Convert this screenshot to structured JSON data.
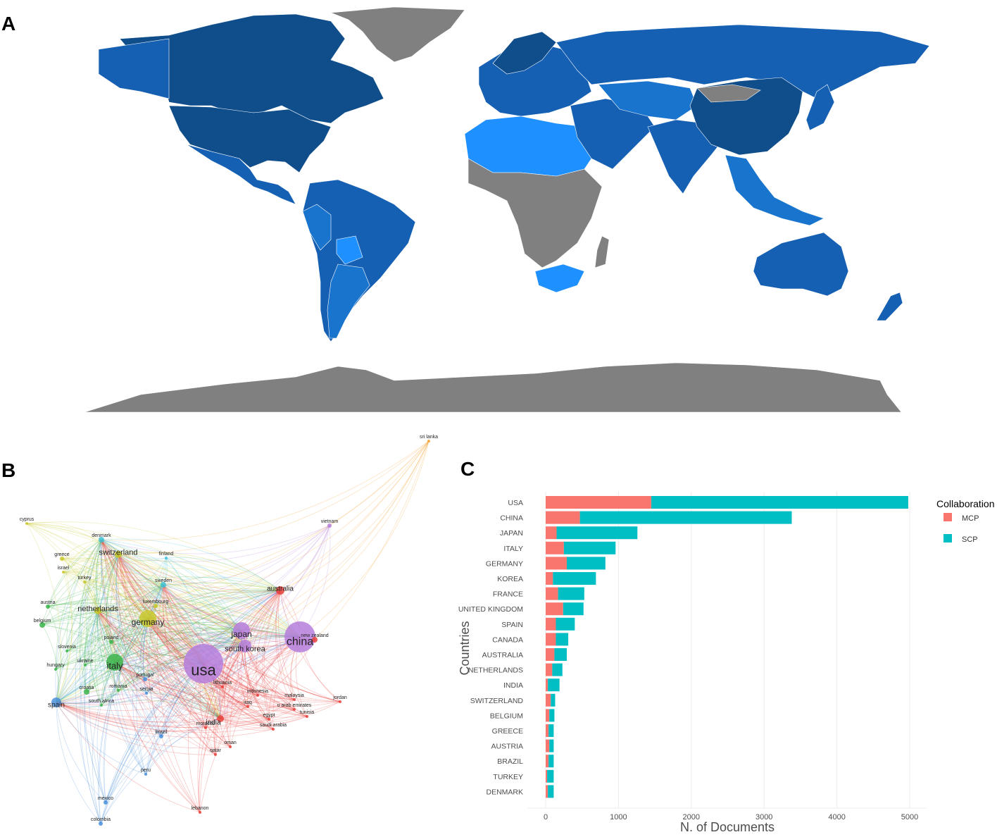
{
  "panels": {
    "a": "A",
    "b": "B",
    "c": "C"
  },
  "map": {
    "colors": {
      "no_data": "#808080",
      "level1": "#1E90FF",
      "level2": "#1874CD",
      "level3": "#1660B4",
      "level4": "#104E8B"
    }
  },
  "network": {
    "clusters": {
      "red": "#E8413C",
      "green": "#3CB44B",
      "blue": "#4A8FDB",
      "yellow": "#C8C82A",
      "purple": "#B57EDC",
      "cyan": "#3EC1D3",
      "orange": "#F5A030"
    },
    "nodes": [
      {
        "label": "usa",
        "cluster": "purple",
        "size": "xl"
      },
      {
        "label": "china",
        "cluster": "purple",
        "size": "l"
      },
      {
        "label": "japan",
        "cluster": "purple",
        "size": "m"
      },
      {
        "label": "south korea",
        "cluster": "purple",
        "size": "m"
      },
      {
        "label": "vietnam",
        "cluster": "purple",
        "size": "xs"
      },
      {
        "label": "italy",
        "cluster": "green",
        "size": "m"
      },
      {
        "label": "germany",
        "cluster": "yellow",
        "size": "m"
      },
      {
        "label": "netherlands",
        "cluster": "yellow",
        "size": "s"
      },
      {
        "label": "switzerland",
        "cluster": "yellow",
        "size": "s"
      },
      {
        "label": "australia",
        "cluster": "red",
        "size": "s"
      },
      {
        "label": "new zealand",
        "cluster": "red",
        "size": "xs"
      },
      {
        "label": "india",
        "cluster": "red",
        "size": "s"
      },
      {
        "label": "spain",
        "cluster": "blue",
        "size": "s"
      },
      {
        "label": "brazil",
        "cluster": "blue",
        "size": "xs"
      },
      {
        "label": "mexico",
        "cluster": "blue",
        "size": "xs"
      },
      {
        "label": "colombia",
        "cluster": "blue",
        "size": "xs"
      },
      {
        "label": "peru",
        "cluster": "blue",
        "size": "xs"
      },
      {
        "label": "austria",
        "cluster": "green",
        "size": "xs"
      },
      {
        "label": "belgium",
        "cluster": "green",
        "size": "xs"
      },
      {
        "label": "poland",
        "cluster": "green",
        "size": "xs"
      },
      {
        "label": "hungary",
        "cluster": "green",
        "size": "xs"
      },
      {
        "label": "slovenia",
        "cluster": "green",
        "size": "xs"
      },
      {
        "label": "ukraine",
        "cluster": "green",
        "size": "xs"
      },
      {
        "label": "croatia",
        "cluster": "green",
        "size": "xs"
      },
      {
        "label": "romania",
        "cluster": "green",
        "size": "xs"
      },
      {
        "label": "south africa",
        "cluster": "green",
        "size": "xs"
      },
      {
        "label": "portugal",
        "cluster": "blue",
        "size": "xs"
      },
      {
        "label": "serbia",
        "cluster": "blue",
        "size": "xs"
      },
      {
        "label": "denmark",
        "cluster": "cyan",
        "size": "xs"
      },
      {
        "label": "finland",
        "cluster": "cyan",
        "size": "xs"
      },
      {
        "label": "sweden",
        "cluster": "cyan",
        "size": "xs"
      },
      {
        "label": "luxembourg",
        "cluster": "yellow",
        "size": "xs"
      },
      {
        "label": "greece",
        "cluster": "yellow",
        "size": "xs"
      },
      {
        "label": "israel",
        "cluster": "yellow",
        "size": "xs"
      },
      {
        "label": "turkey",
        "cluster": "yellow",
        "size": "xs"
      },
      {
        "label": "cyprus",
        "cluster": "yellow",
        "size": "xs"
      },
      {
        "label": "sri lanka",
        "cluster": "orange",
        "size": "xs"
      },
      {
        "label": "lithuania",
        "cluster": "red",
        "size": "xs"
      },
      {
        "label": "indonesia",
        "cluster": "red",
        "size": "xs"
      },
      {
        "label": "malaysia",
        "cluster": "red",
        "size": "xs"
      },
      {
        "label": "jordan",
        "cluster": "red",
        "size": "xs"
      },
      {
        "label": "iraq",
        "cluster": "red",
        "size": "xs"
      },
      {
        "label": "u arab emirates",
        "cluster": "red",
        "size": "xs"
      },
      {
        "label": "tunisia",
        "cluster": "red",
        "size": "xs"
      },
      {
        "label": "egypt",
        "cluster": "red",
        "size": "xs"
      },
      {
        "label": "saudi arabia",
        "cluster": "red",
        "size": "xs"
      },
      {
        "label": "morocco",
        "cluster": "red",
        "size": "xs"
      },
      {
        "label": "oman",
        "cluster": "red",
        "size": "xs"
      },
      {
        "label": "qatar",
        "cluster": "red",
        "size": "xs"
      },
      {
        "label": "lebanon",
        "cluster": "red",
        "size": "xs"
      }
    ]
  },
  "chart_data": {
    "type": "bar",
    "orientation": "horizontal",
    "stacked": true,
    "categories": [
      "USA",
      "CHINA",
      "JAPAN",
      "ITALY",
      "GERMANY",
      "KOREA",
      "FRANCE",
      "UNITED KINGDOM",
      "SPAIN",
      "CANADA",
      "AUSTRALIA",
      "NETHERLANDS",
      "INDIA",
      "SWITZERLAND",
      "BELGIUM",
      "GREECE",
      "AUSTRIA",
      "BRAZIL",
      "TURKEY",
      "DENMARK"
    ],
    "series": [
      {
        "name": "MCP",
        "color": "#F8766D",
        "values": [
          1450,
          470,
          150,
          250,
          290,
          100,
          170,
          240,
          140,
          140,
          120,
          90,
          30,
          70,
          50,
          40,
          50,
          40,
          20,
          30
        ]
      },
      {
        "name": "SCP",
        "color": "#00BFC4",
        "values": [
          3530,
          2910,
          1110,
          710,
          530,
          590,
          360,
          280,
          260,
          170,
          170,
          140,
          160,
          60,
          70,
          70,
          60,
          70,
          90,
          80
        ]
      }
    ],
    "xlabel": "N. of Documents",
    "ylabel": "Countries",
    "xlim": [
      0,
      5200
    ],
    "xticks": [
      0,
      1000,
      2000,
      3000,
      4000,
      5000
    ],
    "legend": {
      "title": "Collaboration",
      "position": "right"
    }
  }
}
